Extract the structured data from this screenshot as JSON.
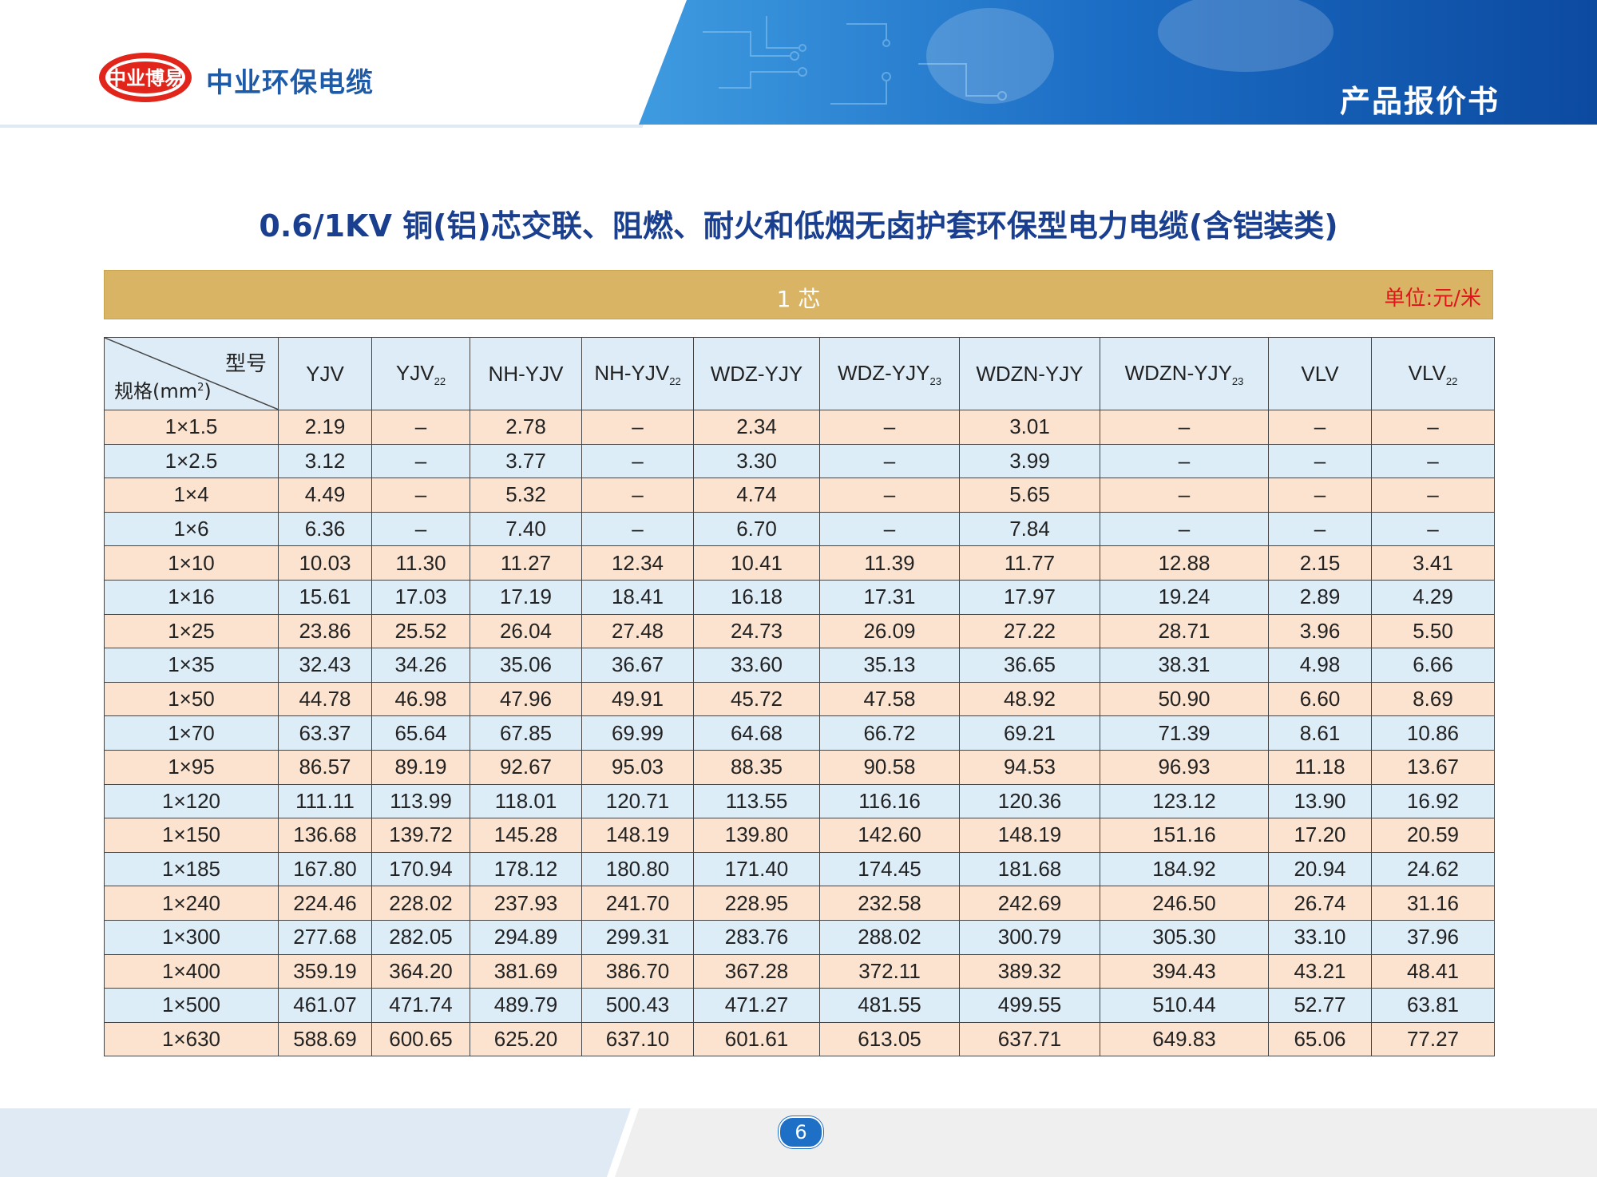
{
  "header": {
    "logo_text": "中业博易",
    "brand": "中业环保电缆",
    "doc_title": "产品报价书"
  },
  "title": "0.6/1KV 铜(铝)芯交联、阻燃、耐火和低烟无卤护套环保型电力电缆(含铠装类)",
  "section": {
    "label": "1 芯",
    "unit": "单位:元/米"
  },
  "table": {
    "corner_top": "型号",
    "corner_bottom": "规格(mm",
    "corner_sup": "2",
    "corner_close": ")",
    "columns": [
      {
        "base": "YJV",
        "sub": ""
      },
      {
        "base": "YJV",
        "sub": "22"
      },
      {
        "base": "NH-YJV",
        "sub": ""
      },
      {
        "base": "NH-YJV",
        "sub": "22"
      },
      {
        "base": "WDZ-YJY",
        "sub": ""
      },
      {
        "base": "WDZ-YJY",
        "sub": "23"
      },
      {
        "base": "WDZN-YJY",
        "sub": ""
      },
      {
        "base": "WDZN-YJY",
        "sub": "23"
      },
      {
        "base": "VLV",
        "sub": ""
      },
      {
        "base": "VLV",
        "sub": "22"
      }
    ],
    "rows": [
      {
        "spec": "1×1.5",
        "values": [
          "2.19",
          "–",
          "2.78",
          "–",
          "2.34",
          "–",
          "3.01",
          "–",
          "–",
          "–"
        ]
      },
      {
        "spec": "1×2.5",
        "values": [
          "3.12",
          "–",
          "3.77",
          "–",
          "3.30",
          "–",
          "3.99",
          "–",
          "–",
          "–"
        ]
      },
      {
        "spec": "1×4",
        "values": [
          "4.49",
          "–",
          "5.32",
          "–",
          "4.74",
          "–",
          "5.65",
          "–",
          "–",
          "–"
        ]
      },
      {
        "spec": "1×6",
        "values": [
          "6.36",
          "–",
          "7.40",
          "–",
          "6.70",
          "–",
          "7.84",
          "–",
          "–",
          "–"
        ]
      },
      {
        "spec": "1×10",
        "values": [
          "10.03",
          "11.30",
          "11.27",
          "12.34",
          "10.41",
          "11.39",
          "11.77",
          "12.88",
          "2.15",
          "3.41"
        ]
      },
      {
        "spec": "1×16",
        "values": [
          "15.61",
          "17.03",
          "17.19",
          "18.41",
          "16.18",
          "17.31",
          "17.97",
          "19.24",
          "2.89",
          "4.29"
        ]
      },
      {
        "spec": "1×25",
        "values": [
          "23.86",
          "25.52",
          "26.04",
          "27.48",
          "24.73",
          "26.09",
          "27.22",
          "28.71",
          "3.96",
          "5.50"
        ]
      },
      {
        "spec": "1×35",
        "values": [
          "32.43",
          "34.26",
          "35.06",
          "36.67",
          "33.60",
          "35.13",
          "36.65",
          "38.31",
          "4.98",
          "6.66"
        ]
      },
      {
        "spec": "1×50",
        "values": [
          "44.78",
          "46.98",
          "47.96",
          "49.91",
          "45.72",
          "47.58",
          "48.92",
          "50.90",
          "6.60",
          "8.69"
        ]
      },
      {
        "spec": "1×70",
        "values": [
          "63.37",
          "65.64",
          "67.85",
          "69.99",
          "64.68",
          "66.72",
          "69.21",
          "71.39",
          "8.61",
          "10.86"
        ]
      },
      {
        "spec": "1×95",
        "values": [
          "86.57",
          "89.19",
          "92.67",
          "95.03",
          "88.35",
          "90.58",
          "94.53",
          "96.93",
          "11.18",
          "13.67"
        ]
      },
      {
        "spec": "1×120",
        "values": [
          "111.11",
          "113.99",
          "118.01",
          "120.71",
          "113.55",
          "116.16",
          "120.36",
          "123.12",
          "13.90",
          "16.92"
        ]
      },
      {
        "spec": "1×150",
        "values": [
          "136.68",
          "139.72",
          "145.28",
          "148.19",
          "139.80",
          "142.60",
          "148.19",
          "151.16",
          "17.20",
          "20.59"
        ]
      },
      {
        "spec": "1×185",
        "values": [
          "167.80",
          "170.94",
          "178.12",
          "180.80",
          "171.40",
          "174.45",
          "181.68",
          "184.92",
          "20.94",
          "24.62"
        ]
      },
      {
        "spec": "1×240",
        "values": [
          "224.46",
          "228.02",
          "237.93",
          "241.70",
          "228.95",
          "232.58",
          "242.69",
          "246.50",
          "26.74",
          "31.16"
        ]
      },
      {
        "spec": "1×300",
        "values": [
          "277.68",
          "282.05",
          "294.89",
          "299.31",
          "283.76",
          "288.02",
          "300.79",
          "305.30",
          "33.10",
          "37.96"
        ]
      },
      {
        "spec": "1×400",
        "values": [
          "359.19",
          "364.20",
          "381.69",
          "386.70",
          "367.28",
          "372.11",
          "389.32",
          "394.43",
          "43.21",
          "48.41"
        ]
      },
      {
        "spec": "1×500",
        "values": [
          "461.07",
          "471.74",
          "489.79",
          "500.43",
          "471.27",
          "481.55",
          "499.55",
          "510.44",
          "52.77",
          "63.81"
        ]
      },
      {
        "spec": "1×630",
        "values": [
          "588.69",
          "600.65",
          "625.20",
          "637.10",
          "601.61",
          "613.05",
          "637.71",
          "649.83",
          "65.06",
          "77.27"
        ]
      }
    ]
  },
  "footer": {
    "page_number": "6"
  },
  "colors": {
    "brand_blue": "#1d5aa8",
    "gold_bar": "#d8b464",
    "row_peach": "#fbe3cf",
    "row_blue": "#ddedf8",
    "unit_red": "#e0141b"
  }
}
